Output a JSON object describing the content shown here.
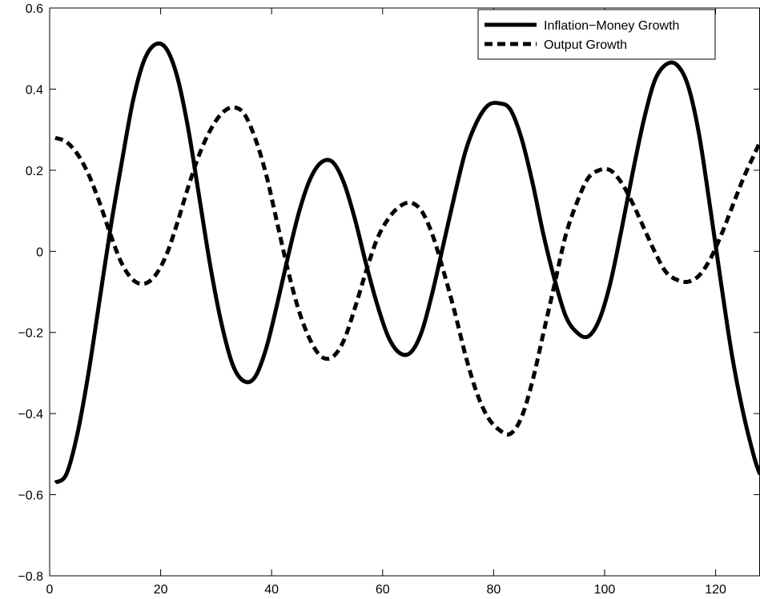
{
  "chart_data": {
    "type": "line",
    "title": "",
    "xlabel": "",
    "ylabel": "",
    "xlim": [
      0,
      128
    ],
    "ylim": [
      -0.8,
      0.6
    ],
    "xticks": [
      0,
      20,
      40,
      60,
      80,
      100,
      120
    ],
    "yticks": [
      0.6,
      0.4,
      0.2,
      0,
      -0.2,
      -0.4,
      -0.6,
      -0.8
    ],
    "xtick_labels": [
      "0",
      "20",
      "40",
      "60",
      "80",
      "100",
      "120"
    ],
    "ytick_labels": [
      "0.6",
      "0.4",
      "0.2",
      "0",
      "−0.2",
      "−0.4",
      "−0.6",
      "−0.8"
    ],
    "grid": false,
    "legend_position": "top-right",
    "colors": {
      "line": "#000000",
      "background": "#ffffff"
    },
    "series": [
      {
        "name": "Inflation−Money Growth",
        "style": "solid",
        "points": [
          [
            1,
            -0.57
          ],
          [
            3,
            -0.55
          ],
          [
            5,
            -0.45
          ],
          [
            7,
            -0.3
          ],
          [
            9,
            -0.12
          ],
          [
            11,
            0.06
          ],
          [
            13,
            0.22
          ],
          [
            15,
            0.37
          ],
          [
            17,
            0.47
          ],
          [
            19,
            0.51
          ],
          [
            21,
            0.5
          ],
          [
            23,
            0.43
          ],
          [
            25,
            0.3
          ],
          [
            27,
            0.13
          ],
          [
            29,
            -0.04
          ],
          [
            31,
            -0.18
          ],
          [
            33,
            -0.28
          ],
          [
            35,
            -0.32
          ],
          [
            37,
            -0.31
          ],
          [
            39,
            -0.24
          ],
          [
            41,
            -0.13
          ],
          [
            43,
            -0.01
          ],
          [
            45,
            0.1
          ],
          [
            47,
            0.18
          ],
          [
            49,
            0.22
          ],
          [
            51,
            0.22
          ],
          [
            53,
            0.17
          ],
          [
            55,
            0.08
          ],
          [
            57,
            -0.03
          ],
          [
            59,
            -0.13
          ],
          [
            61,
            -0.21
          ],
          [
            63,
            -0.25
          ],
          [
            65,
            -0.25
          ],
          [
            67,
            -0.2
          ],
          [
            69,
            -0.1
          ],
          [
            71,
            0.02
          ],
          [
            73,
            0.14
          ],
          [
            75,
            0.25
          ],
          [
            77,
            0.32
          ],
          [
            79,
            0.36
          ],
          [
            81,
            0.365
          ],
          [
            83,
            0.35
          ],
          [
            85,
            0.28
          ],
          [
            87,
            0.17
          ],
          [
            89,
            0.04
          ],
          [
            91,
            -0.07
          ],
          [
            93,
            -0.16
          ],
          [
            95,
            -0.2
          ],
          [
            97,
            -0.21
          ],
          [
            99,
            -0.17
          ],
          [
            101,
            -0.08
          ],
          [
            103,
            0.05
          ],
          [
            105,
            0.19
          ],
          [
            107,
            0.32
          ],
          [
            109,
            0.42
          ],
          [
            111,
            0.46
          ],
          [
            113,
            0.46
          ],
          [
            115,
            0.41
          ],
          [
            117,
            0.29
          ],
          [
            119,
            0.11
          ],
          [
            121,
            -0.08
          ],
          [
            123,
            -0.26
          ],
          [
            125,
            -0.4
          ],
          [
            127,
            -0.51
          ],
          [
            128,
            -0.55
          ]
        ]
      },
      {
        "name": "Output Growth",
        "style": "dashed",
        "points": [
          [
            1,
            0.28
          ],
          [
            3,
            0.27
          ],
          [
            5,
            0.24
          ],
          [
            7,
            0.19
          ],
          [
            9,
            0.12
          ],
          [
            11,
            0.04
          ],
          [
            13,
            -0.03
          ],
          [
            15,
            -0.07
          ],
          [
            17,
            -0.08
          ],
          [
            19,
            -0.06
          ],
          [
            21,
            -0.01
          ],
          [
            23,
            0.07
          ],
          [
            25,
            0.16
          ],
          [
            27,
            0.24
          ],
          [
            29,
            0.3
          ],
          [
            31,
            0.34
          ],
          [
            33,
            0.355
          ],
          [
            35,
            0.34
          ],
          [
            37,
            0.28
          ],
          [
            39,
            0.19
          ],
          [
            41,
            0.07
          ],
          [
            43,
            -0.05
          ],
          [
            45,
            -0.15
          ],
          [
            47,
            -0.22
          ],
          [
            49,
            -0.26
          ],
          [
            51,
            -0.26
          ],
          [
            53,
            -0.22
          ],
          [
            55,
            -0.14
          ],
          [
            57,
            -0.05
          ],
          [
            59,
            0.03
          ],
          [
            61,
            0.08
          ],
          [
            63,
            0.11
          ],
          [
            65,
            0.12
          ],
          [
            67,
            0.1
          ],
          [
            69,
            0.04
          ],
          [
            71,
            -0.05
          ],
          [
            73,
            -0.15
          ],
          [
            75,
            -0.26
          ],
          [
            77,
            -0.35
          ],
          [
            79,
            -0.41
          ],
          [
            81,
            -0.44
          ],
          [
            83,
            -0.45
          ],
          [
            85,
            -0.41
          ],
          [
            87,
            -0.32
          ],
          [
            89,
            -0.2
          ],
          [
            91,
            -0.08
          ],
          [
            93,
            0.04
          ],
          [
            95,
            0.12
          ],
          [
            97,
            0.18
          ],
          [
            99,
            0.2
          ],
          [
            101,
            0.2
          ],
          [
            103,
            0.17
          ],
          [
            105,
            0.12
          ],
          [
            107,
            0.06
          ],
          [
            109,
            0.0
          ],
          [
            111,
            -0.05
          ],
          [
            113,
            -0.07
          ],
          [
            115,
            -0.075
          ],
          [
            117,
            -0.06
          ],
          [
            119,
            -0.02
          ],
          [
            121,
            0.04
          ],
          [
            123,
            0.11
          ],
          [
            125,
            0.18
          ],
          [
            127,
            0.24
          ],
          [
            128,
            0.27
          ]
        ]
      }
    ]
  }
}
